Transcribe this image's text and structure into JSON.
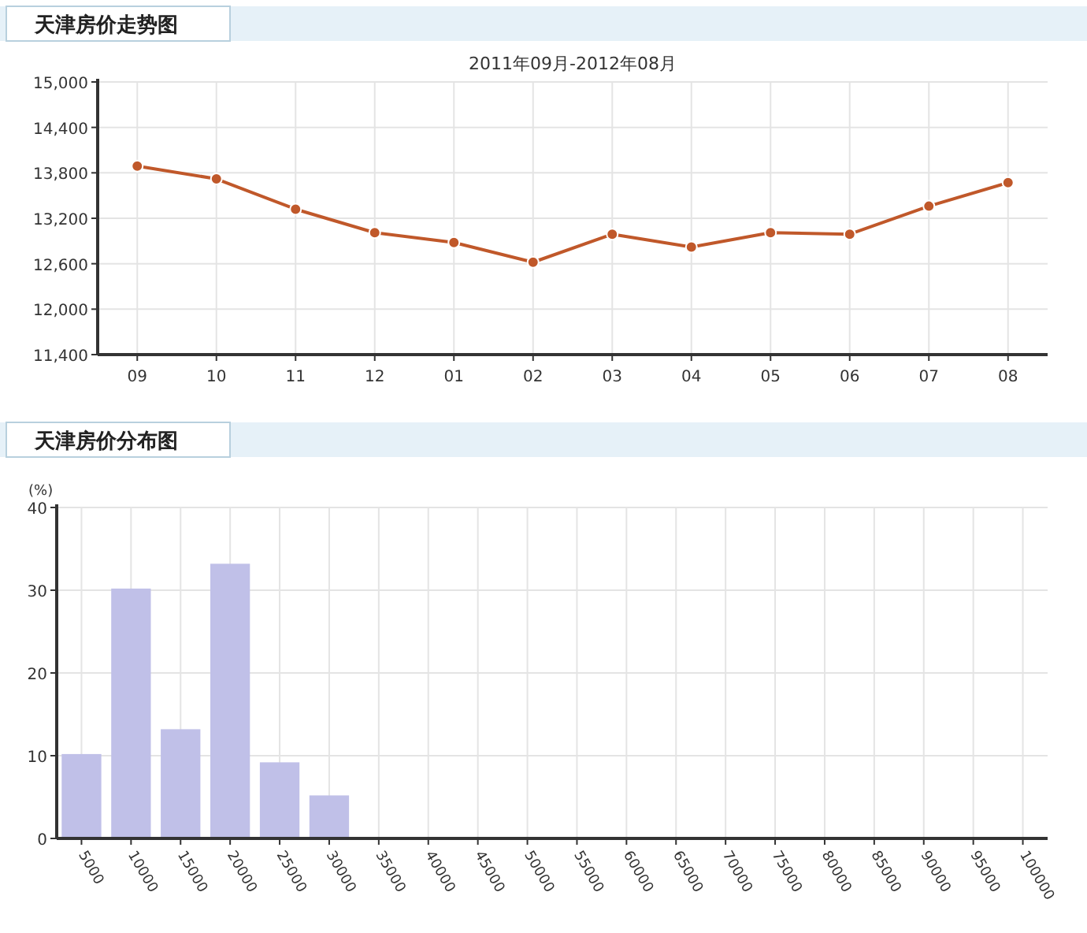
{
  "chart_data": [
    {
      "type": "line",
      "title": "天津房价走势图",
      "subtitle": "2011年09月-2012年08月",
      "categories": [
        "09",
        "10",
        "11",
        "12",
        "01",
        "02",
        "03",
        "04",
        "05",
        "06",
        "07",
        "08"
      ],
      "series": [
        {
          "color": "#c0582a",
          "values": [
            13890,
            13720,
            13320,
            13010,
            12880,
            12620,
            12990,
            12820,
            13010,
            12990,
            13360,
            13670
          ]
        }
      ],
      "ylim": [
        11400,
        15000
      ],
      "yticks": [
        {
          "value": 11400,
          "label": "11,400"
        },
        {
          "value": 12000,
          "label": "12,000"
        },
        {
          "value": 12600,
          "label": "12,600"
        },
        {
          "value": 13200,
          "label": "13,200"
        },
        {
          "value": 13800,
          "label": "13,800"
        },
        {
          "value": 14400,
          "label": "14,400"
        },
        {
          "value": 15000,
          "label": "15,000"
        }
      ],
      "grid": true,
      "marker": "circle",
      "line_style": "solid"
    },
    {
      "type": "bar",
      "title": "天津房价分布图",
      "ylabel": "(%)",
      "categories": [
        "5000",
        "10000",
        "15000",
        "20000",
        "25000",
        "30000",
        "35000",
        "40000",
        "45000",
        "50000",
        "55000",
        "60000",
        "65000",
        "70000",
        "75000",
        "80000",
        "85000",
        "90000",
        "95000",
        "100000"
      ],
      "series": [
        {
          "color": "#c0c0e8",
          "values": [
            10.2,
            30.2,
            13.2,
            33.2,
            9.2,
            5.2,
            0,
            0,
            0,
            0,
            0,
            0,
            0,
            0,
            0,
            0,
            0,
            0,
            0,
            0
          ]
        }
      ],
      "ylim": [
        0,
        40
      ],
      "yticks": [
        0,
        10,
        20,
        30,
        40
      ],
      "grid": true
    }
  ]
}
